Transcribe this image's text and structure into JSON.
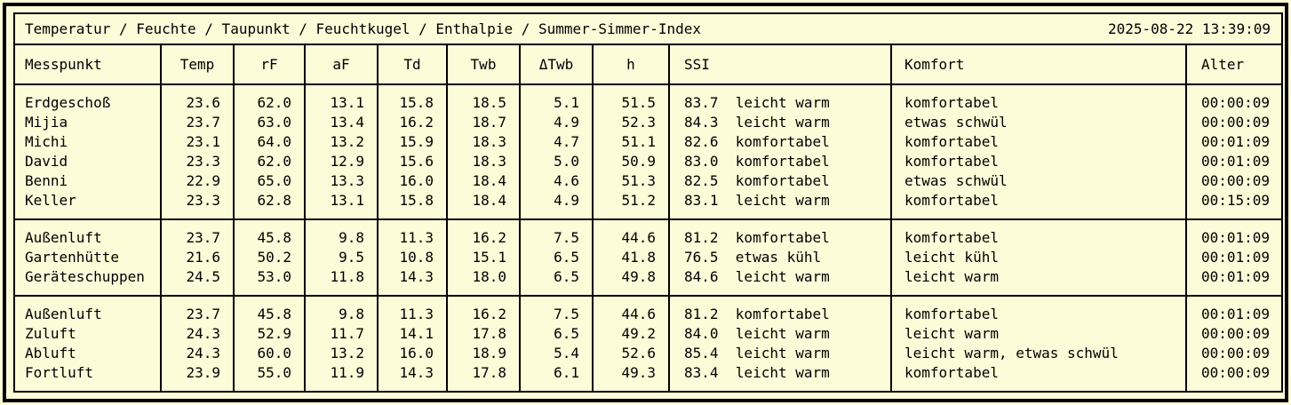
{
  "window": {
    "title": "Temperatur / Feuchte / Taupunkt / Feuchtkugel / Enthalpie / Summer-Simmer-Index",
    "timestamp": "2025-08-22 13:39:09"
  },
  "colors": {
    "background": "#FCFCD9",
    "border": "#000000",
    "text": "#000000"
  },
  "table": {
    "headers": [
      "Messpunkt",
      "Temp",
      "rF",
      "aF",
      "Td",
      "Twb",
      "ΔTwb",
      "h",
      "SSI",
      "Komfort",
      "Alter"
    ],
    "blocks": [
      {
        "rows": [
          {
            "name": "Erdgeschoß",
            "temp": "23.6",
            "rf": "62.0",
            "af": "13.1",
            "td": "15.8",
            "twb": "18.5",
            "dtwb": "5.1",
            "h": "51.5",
            "ssi_value": "83.7",
            "ssi_label": "leicht warm",
            "komfort": "komfortabel",
            "alter": "00:00:09"
          },
          {
            "name": "Mijia",
            "temp": "23.7",
            "rf": "63.0",
            "af": "13.4",
            "td": "16.2",
            "twb": "18.7",
            "dtwb": "4.9",
            "h": "52.3",
            "ssi_value": "84.3",
            "ssi_label": "leicht warm",
            "komfort": "etwas schwül",
            "alter": "00:00:09"
          },
          {
            "name": "Michi",
            "temp": "23.1",
            "rf": "64.0",
            "af": "13.2",
            "td": "15.9",
            "twb": "18.3",
            "dtwb": "4.7",
            "h": "51.1",
            "ssi_value": "82.6",
            "ssi_label": "komfortabel",
            "komfort": "komfortabel",
            "alter": "00:01:09"
          },
          {
            "name": "David",
            "temp": "23.3",
            "rf": "62.0",
            "af": "12.9",
            "td": "15.6",
            "twb": "18.3",
            "dtwb": "5.0",
            "h": "50.9",
            "ssi_value": "83.0",
            "ssi_label": "komfortabel",
            "komfort": "komfortabel",
            "alter": "00:01:09"
          },
          {
            "name": "Benni",
            "temp": "22.9",
            "rf": "65.0",
            "af": "13.3",
            "td": "16.0",
            "twb": "18.4",
            "dtwb": "4.6",
            "h": "51.3",
            "ssi_value": "82.5",
            "ssi_label": "komfortabel",
            "komfort": "etwas schwül",
            "alter": "00:00:09"
          },
          {
            "name": "Keller",
            "temp": "23.3",
            "rf": "62.8",
            "af": "13.1",
            "td": "15.8",
            "twb": "18.4",
            "dtwb": "4.9",
            "h": "51.2",
            "ssi_value": "83.1",
            "ssi_label": "leicht warm",
            "komfort": "komfortabel",
            "alter": "00:15:09"
          }
        ]
      },
      {
        "rows": [
          {
            "name": "Außenluft",
            "temp": "23.7",
            "rf": "45.8",
            "af": "9.8",
            "td": "11.3",
            "twb": "16.2",
            "dtwb": "7.5",
            "h": "44.6",
            "ssi_value": "81.2",
            "ssi_label": "komfortabel",
            "komfort": "komfortabel",
            "alter": "00:01:09"
          },
          {
            "name": "Gartenhütte",
            "temp": "21.6",
            "rf": "50.2",
            "af": "9.5",
            "td": "10.8",
            "twb": "15.1",
            "dtwb": "6.5",
            "h": "41.8",
            "ssi_value": "76.5",
            "ssi_label": "etwas kühl",
            "komfort": "leicht kühl",
            "alter": "00:01:09"
          },
          {
            "name": "Geräteschuppen",
            "temp": "24.5",
            "rf": "53.0",
            "af": "11.8",
            "td": "14.3",
            "twb": "18.0",
            "dtwb": "6.5",
            "h": "49.8",
            "ssi_value": "84.6",
            "ssi_label": "leicht warm",
            "komfort": "leicht warm",
            "alter": "00:01:09"
          }
        ]
      },
      {
        "rows": [
          {
            "name": "Außenluft",
            "temp": "23.7",
            "rf": "45.8",
            "af": "9.8",
            "td": "11.3",
            "twb": "16.2",
            "dtwb": "7.5",
            "h": "44.6",
            "ssi_value": "81.2",
            "ssi_label": "komfortabel",
            "komfort": "komfortabel",
            "alter": "00:01:09"
          },
          {
            "name": "Zuluft",
            "temp": "24.3",
            "rf": "52.9",
            "af": "11.7",
            "td": "14.1",
            "twb": "17.8",
            "dtwb": "6.5",
            "h": "49.2",
            "ssi_value": "84.0",
            "ssi_label": "leicht warm",
            "komfort": "leicht warm",
            "alter": "00:00:09"
          },
          {
            "name": "Abluft",
            "temp": "24.3",
            "rf": "60.0",
            "af": "13.2",
            "td": "16.0",
            "twb": "18.9",
            "dtwb": "5.4",
            "h": "52.6",
            "ssi_value": "85.4",
            "ssi_label": "leicht warm",
            "komfort": "leicht warm, etwas schwül",
            "alter": "00:00:09"
          },
          {
            "name": "Fortluft",
            "temp": "23.9",
            "rf": "55.0",
            "af": "11.9",
            "td": "14.3",
            "twb": "17.8",
            "dtwb": "6.1",
            "h": "49.3",
            "ssi_value": "83.4",
            "ssi_label": "leicht warm",
            "komfort": "komfortabel",
            "alter": "00:00:09"
          }
        ]
      }
    ]
  }
}
